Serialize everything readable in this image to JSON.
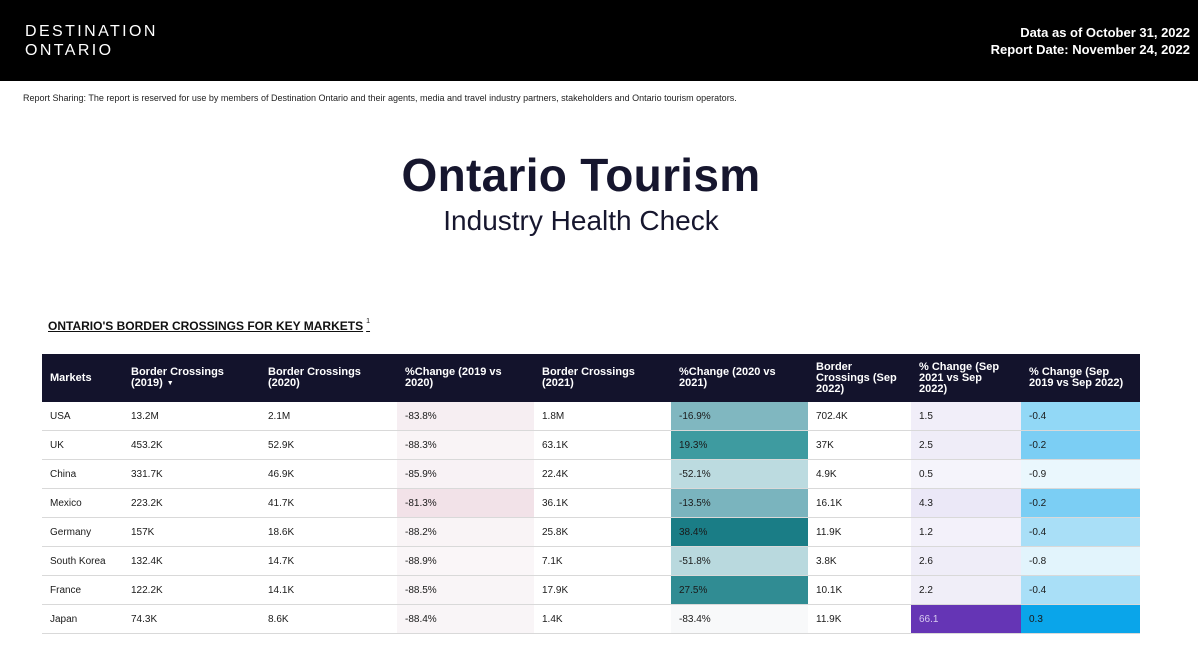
{
  "header": {
    "brand_line1": "DESTINATION",
    "brand_line2": "ONTARIO",
    "data_as_of": "Data as of October 31, 2022",
    "report_date": "Report Date: November 24, 2022"
  },
  "sharing_note": "Report Sharing: The report is reserved for use by members of Destination Ontario and their agents, media and travel industry partners, stakeholders and Ontario tourism operators.",
  "title": "Ontario Tourism",
  "subtitle": "Industry Health Check",
  "section": {
    "title": "ONTARIO'S BORDER CROSSINGS FOR KEY MARKETS",
    "footnote": "1"
  },
  "table": {
    "sort_indicator": "▼",
    "columns": [
      "Markets",
      "Border Crossings (2019)",
      "Border Crossings (2020)",
      "%Change (2019 vs 2020)",
      "Border Crossings (2021)",
      "%Change (2020 vs 2021)",
      "Border Crossings (Sep 2022)",
      "% Change (Sep 2021 vs Sep 2022)",
      "% Change (Sep 2019 vs Sep 2022)"
    ],
    "rows": [
      {
        "cells": [
          "USA",
          "13.2M",
          "2.1M",
          "-83.8%",
          "1.8M",
          "-16.9%",
          "702.4K",
          "1.5",
          "-0.4"
        ],
        "colors": {
          "3": "#f6eef2",
          "5": "#80b7c0",
          "7": "#f1eef9",
          "8": "#92d8f6"
        }
      },
      {
        "cells": [
          "UK",
          "453.2K",
          "52.9K",
          "-88.3%",
          "63.1K",
          "19.3%",
          "37K",
          "2.5",
          "-0.2"
        ],
        "colors": {
          "3": "#f9f4f6",
          "5": "#3e9ba0",
          "7": "#efedf8",
          "8": "#7bcef4"
        }
      },
      {
        "cells": [
          "China",
          "331.7K",
          "46.9K",
          "-85.9%",
          "22.4K",
          "-52.1%",
          "4.9K",
          "0.5",
          "-0.9"
        ],
        "colors": {
          "3": "#f8f2f5",
          "5": "#bcdbe0",
          "7": "#f5f4fb",
          "8": "#eaf7fd"
        }
      },
      {
        "cells": [
          "Mexico",
          "223.2K",
          "41.7K",
          "-81.3%",
          "36.1K",
          "-13.5%",
          "16.1K",
          "4.3",
          "-0.2"
        ],
        "colors": {
          "3": "#f2e2e8",
          "5": "#7ab4be",
          "7": "#ebe8f7",
          "8": "#7bcef4"
        }
      },
      {
        "cells": [
          "Germany",
          "157K",
          "18.6K",
          "-88.2%",
          "25.8K",
          "38.4%",
          "11.9K",
          "1.2",
          "-0.4"
        ],
        "colors": {
          "3": "#f9f4f6",
          "5": "#1a7d86",
          "7": "#f3f1fa",
          "8": "#a9dff7"
        }
      },
      {
        "cells": [
          "South Korea",
          "132.4K",
          "14.7K",
          "-88.9%",
          "7.1K",
          "-51.8%",
          "3.8K",
          "2.6",
          "-0.8"
        ],
        "colors": {
          "3": "#faf6f8",
          "5": "#b9d9de",
          "7": "#efedf8",
          "8": "#e2f4fc"
        }
      },
      {
        "cells": [
          "France",
          "122.2K",
          "14.1K",
          "-88.5%",
          "17.9K",
          "27.5%",
          "10.1K",
          "2.2",
          "-0.4"
        ],
        "colors": {
          "3": "#f9f5f7",
          "5": "#308c93",
          "7": "#f0eef8",
          "8": "#a9dff7"
        }
      },
      {
        "cells": [
          "Japan",
          "74.3K",
          "8.6K",
          "-88.4%",
          "1.4K",
          "-83.4%",
          "11.9K",
          "66.1",
          "0.3"
        ],
        "colors": {
          "3": "#f9f5f7",
          "5": "#f8f9fa",
          "7": "#6535b5",
          "8": "#0aa5ea"
        },
        "text_colors": {
          "7": "#d8ccf0"
        }
      }
    ]
  }
}
